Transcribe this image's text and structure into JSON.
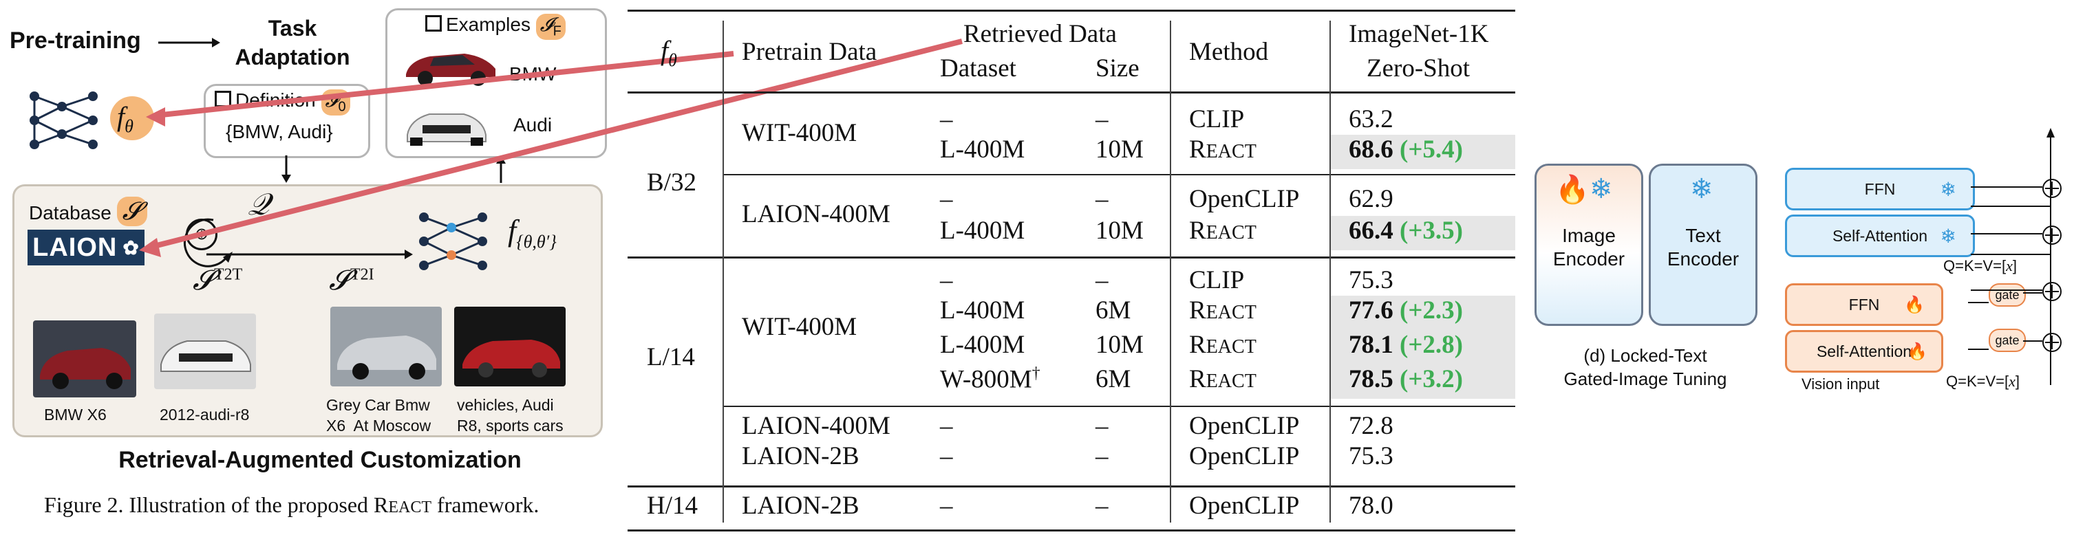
{
  "framework": {
    "pretraining": "Pre-training",
    "task_adaptation_line1": "Task",
    "task_adaptation_line2": "Adaptation",
    "examples_label": "Examples",
    "examples_symbol": "𝓘",
    "examples_sub": "F",
    "definition_label": "Definition",
    "definition_symbol": "𝓘",
    "definition_sub": "0",
    "definition_value": "{BMW, Audi}",
    "example_names": [
      "BMW",
      "Audi"
    ],
    "f_theta": "f",
    "f_theta_sub": "θ",
    "query_symbol": "𝒬",
    "database_label": "Database",
    "database_symbol": "𝓢",
    "laion_logo": "LAION",
    "s_t2t": "𝓢",
    "s_t2t_sup": "T2T",
    "s_t2i": "𝓢",
    "s_t2i_sup": "T2I",
    "f_combined": "f",
    "f_combined_sub": "{θ,θ′}",
    "captions": [
      "BMW X6",
      "2012-audi-r8",
      "Grey Car Bmw\nX6  At Moscow",
      "vehicles, Audi\nR8, sports cars"
    ],
    "customization_title": "Retrieval-Augmented Customization",
    "figure_caption_prefix": "Figure 2. Illustration of the proposed ",
    "figure_caption_react_first": "R",
    "figure_caption_react_rest": "EACT",
    "figure_caption_suffix": " framework."
  },
  "table": {
    "headers": {
      "f_theta": "f",
      "f_theta_sub": "θ",
      "pretrain_data": "Pretrain Data",
      "retrieved_data": "Retrieved Data",
      "dataset": "Dataset",
      "size": "Size",
      "method": "Method",
      "imagenet_line1": "ImageNet-1K",
      "imagenet_line2": "Zero-Shot"
    },
    "groups": [
      {
        "backbone": "B/32"
      },
      {
        "backbone": "L/14"
      },
      {
        "backbone": "H/14"
      }
    ],
    "rows": [
      {
        "pretrain": "WIT-400M",
        "dataset": "–",
        "size": "–",
        "method": "CLIP",
        "react": false,
        "score": "63.2",
        "gain": "",
        "bold": false
      },
      {
        "pretrain": "",
        "dataset": "L-400M",
        "size": "10M",
        "method": "",
        "react": true,
        "score": "68.6",
        "gain": "(+5.4)",
        "bold": true
      },
      {
        "pretrain": "LAION-400M",
        "dataset": "–",
        "size": "–",
        "method": "OpenCLIP",
        "react": false,
        "score": "62.9",
        "gain": "",
        "bold": false
      },
      {
        "pretrain": "",
        "dataset": "L-400M",
        "size": "10M",
        "method": "",
        "react": true,
        "score": "66.4",
        "gain": "(+3.5)",
        "bold": true
      },
      {
        "pretrain": "WIT-400M",
        "dataset": "–",
        "size": "–",
        "method": "CLIP",
        "react": false,
        "score": "75.3",
        "gain": "",
        "bold": false
      },
      {
        "pretrain": "",
        "dataset": "L-400M",
        "size": "6M",
        "method": "",
        "react": true,
        "score": "77.6",
        "gain": "(+2.3)",
        "bold": true
      },
      {
        "pretrain": "",
        "dataset": "L-400M",
        "size": "10M",
        "method": "",
        "react": true,
        "score": "78.1",
        "gain": "(+2.8)",
        "bold": true
      },
      {
        "pretrain": "",
        "dataset": "W-800M",
        "dataset_sup": "†",
        "size": "6M",
        "method": "",
        "react": true,
        "score": "78.5",
        "gain": "(+3.2)",
        "bold": true
      },
      {
        "pretrain": "LAION-400M",
        "dataset": "–",
        "size": "–",
        "method": "OpenCLIP",
        "react": false,
        "score": "72.8",
        "gain": "",
        "bold": false
      },
      {
        "pretrain": "LAION-2B",
        "dataset": "–",
        "size": "–",
        "method": "OpenCLIP",
        "react": false,
        "score": "75.3",
        "gain": "",
        "bold": false
      },
      {
        "pretrain": "LAION-2B",
        "dataset": "–",
        "size": "–",
        "method": "OpenCLIP",
        "react": false,
        "score": "78.0",
        "gain": "",
        "bold": false
      }
    ],
    "react_first": "R",
    "react_rest": "EACT"
  },
  "encoders": {
    "image_line1": "Image",
    "image_line2": "Encoder",
    "text_line1": "Text",
    "text_line2": "Encoder",
    "caption_line1": "(d) Locked-Text",
    "caption_line2": "Gated-Image Tuning"
  },
  "blocks": {
    "ffn": "FFN",
    "self_attention": "Self-Attention",
    "gate": "gate",
    "qkv": "Q=K=V=[",
    "qkv_var": "x",
    "qkv_close": "]",
    "vision_input": "Vision input"
  },
  "colors": {
    "highlight_orange": "#f5b87a",
    "gain_green": "#3fae54",
    "frozen_blue": "#3a9ad9",
    "tuned_orange": "#e8854a",
    "arrow_red": "#d9636a",
    "laion_navy": "#1c3a5c"
  },
  "icons": [
    "neural-net-icon",
    "fire-icon",
    "snowflake-icon",
    "globe-icon",
    "paw-icon",
    "checkbox-icon"
  ]
}
